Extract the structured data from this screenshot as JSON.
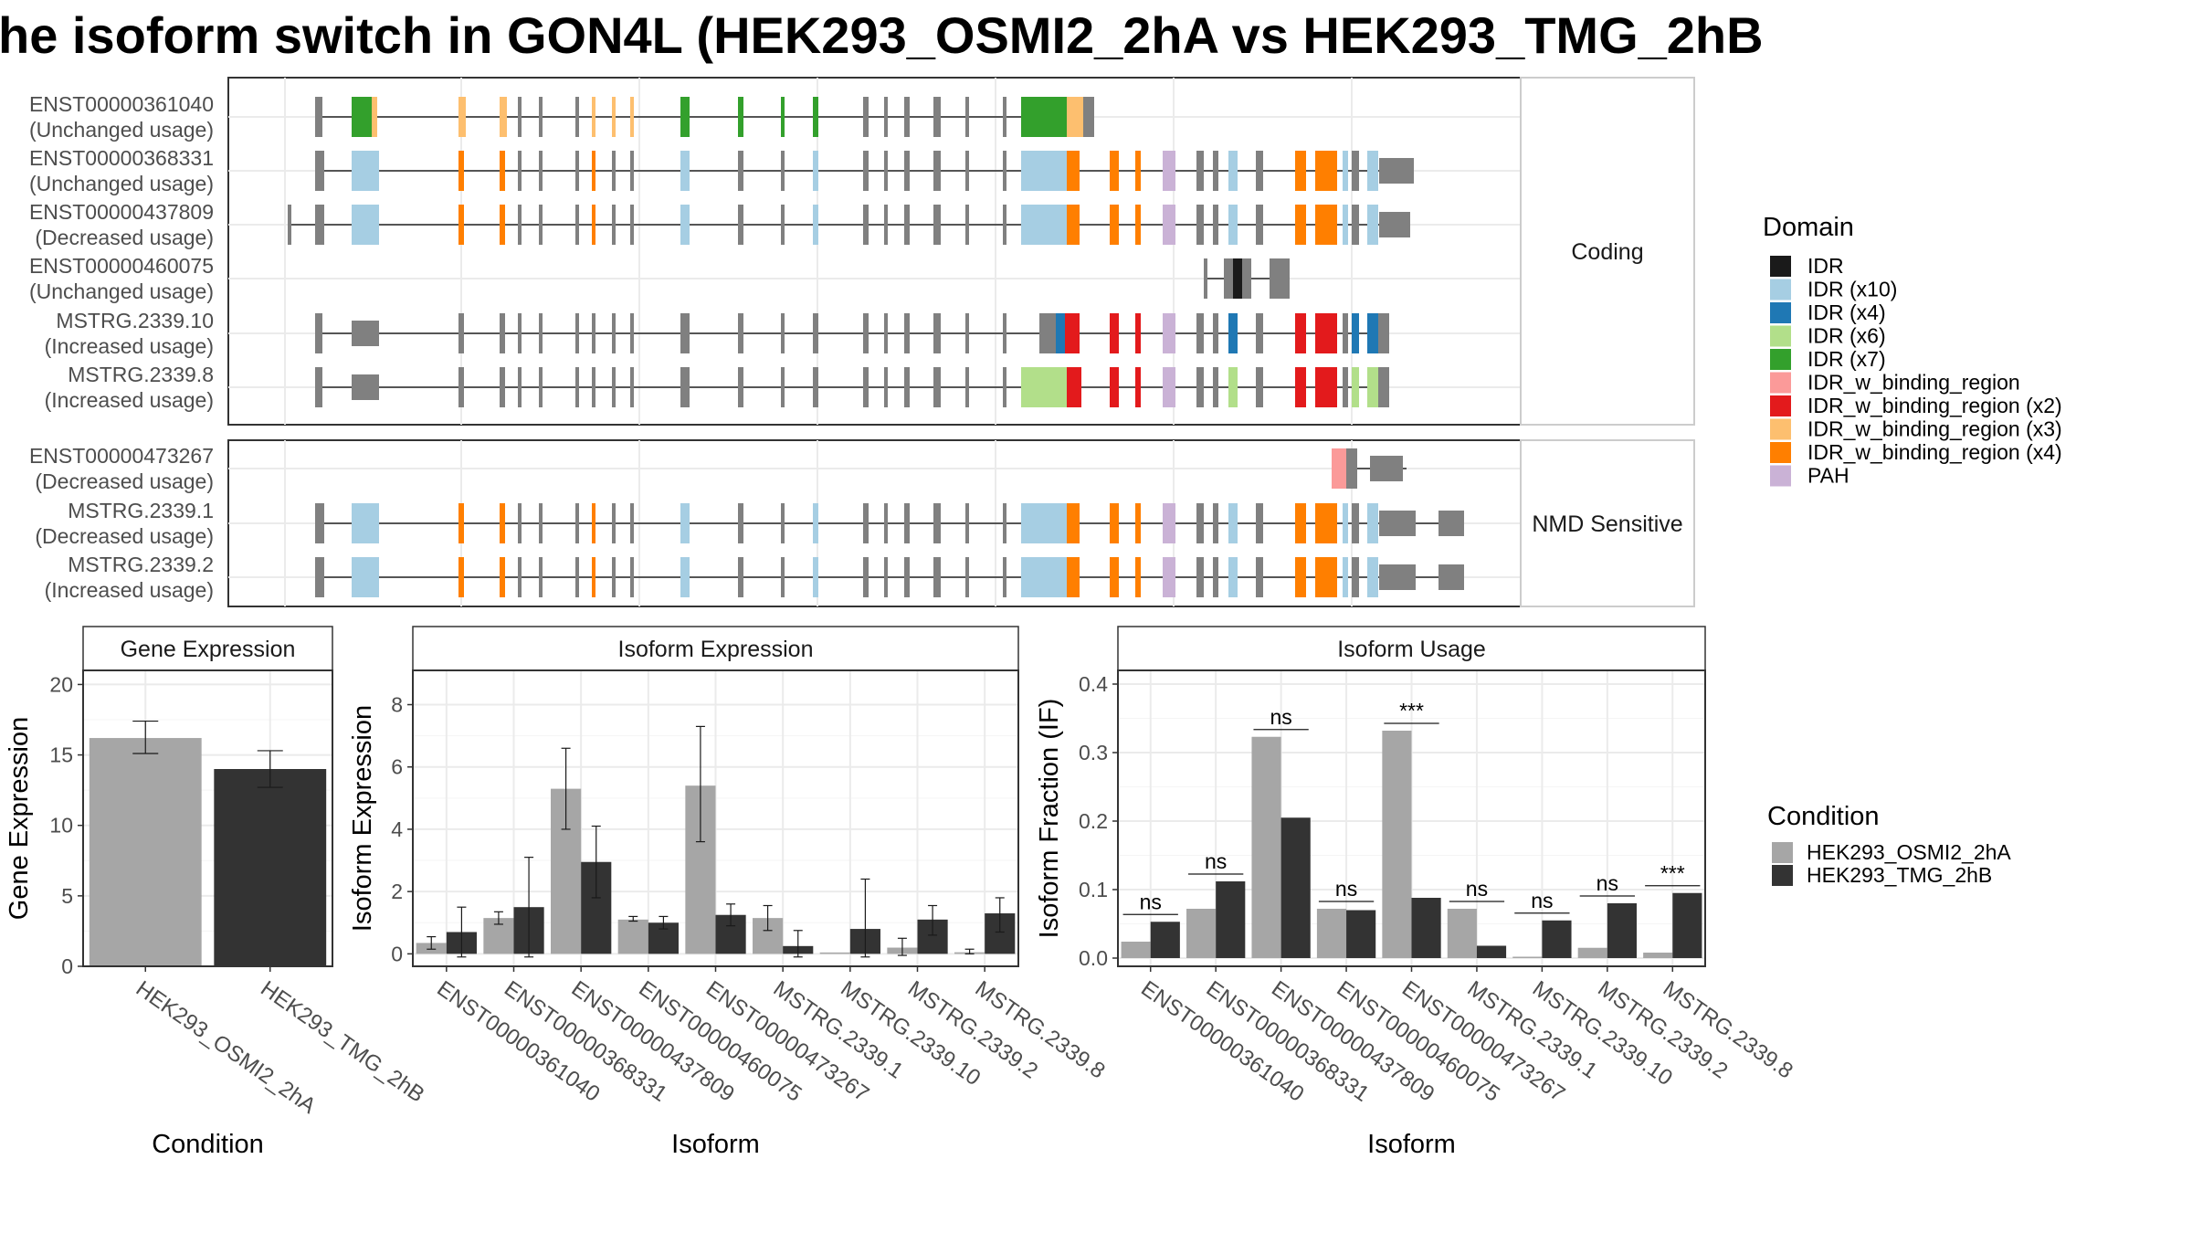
{
  "title": "he isoform switch in GON4L (HEK293_OSMI2_2hA vs HEK293_TMG_2hB",
  "domain_colors": {
    "IDR": "#1a1a1a",
    "IDR (x10)": "#a6cee3",
    "IDR (x4)": "#1f78b4",
    "IDR (x6)": "#b2df8a",
    "IDR (x7)": "#33a02c",
    "IDR_w_binding_region": "#fb9a99",
    "IDR_w_binding_region (x2)": "#e31a1c",
    "IDR_w_binding_region (x3)": "#fdbf6f",
    "IDR_w_binding_region (x4)": "#ff7f00",
    "PAH": "#cab2d6",
    "exon": "#808080"
  },
  "legend_domain": {
    "title": "Domain",
    "items": [
      "IDR",
      "IDR (x10)",
      "IDR (x4)",
      "IDR (x6)",
      "IDR (x7)",
      "IDR_w_binding_region",
      "IDR_w_binding_region (x2)",
      "IDR_w_binding_region (x3)",
      "IDR_w_binding_region (x4)",
      "PAH"
    ]
  },
  "legend_condition": {
    "title": "Condition",
    "items": [
      {
        "label": "HEK293_OSMI2_2hA",
        "color": "#a6a6a6"
      },
      {
        "label": "HEK293_TMG_2hB",
        "color": "#333333"
      }
    ]
  },
  "transcript_panels": [
    {
      "strip": "Coding",
      "transcripts": [
        {
          "name": "ENST00000361040",
          "usage": "(Unchanged usage)"
        },
        {
          "name": "ENST00000368331",
          "usage": "(Unchanged usage)"
        },
        {
          "name": "ENST00000437809",
          "usage": "(Decreased usage)"
        },
        {
          "name": "ENST00000460075",
          "usage": "(Unchanged usage)"
        },
        {
          "name": "MSTRG.2339.10",
          "usage": "(Increased usage)"
        },
        {
          "name": "MSTRG.2339.8",
          "usage": "(Increased usage)"
        }
      ]
    },
    {
      "strip": "NMD Sensitive",
      "transcripts": [
        {
          "name": "ENST00000473267",
          "usage": "(Decreased usage)"
        },
        {
          "name": "MSTRG.2339.1",
          "usage": "(Decreased usage)"
        },
        {
          "name": "MSTRG.2339.2",
          "usage": "(Increased usage)"
        }
      ]
    }
  ],
  "chart_data": [
    {
      "type": "bar",
      "strip": "Gene Expression",
      "xlabel": "Condition",
      "ylabel": "Gene Expression",
      "ylim": [
        0,
        21
      ],
      "yticks": [
        0,
        5,
        10,
        15,
        20
      ],
      "categories": [
        "HEK293_OSMI2_2hA",
        "HEK293_TMG_2hB"
      ],
      "values": [
        16.2,
        14.0
      ],
      "errors": [
        [
          15.1,
          17.4
        ],
        [
          12.7,
          15.3
        ]
      ],
      "colors": [
        "#a6a6a6",
        "#333333"
      ]
    },
    {
      "type": "bar",
      "strip": "Isoform Expression",
      "xlabel": "Isoform",
      "ylabel": "Isoform Expression",
      "ylim": [
        -0.4,
        9.1
      ],
      "yticks": [
        0,
        2,
        4,
        6,
        8
      ],
      "categories": [
        "ENST00000361040",
        "ENST00000368331",
        "ENST00000437809",
        "ENST00000460075",
        "ENST00000473267",
        "MSTRG.2339.1",
        "MSTRG.2339.10",
        "MSTRG.2339.2",
        "MSTRG.2339.8"
      ],
      "series": [
        {
          "name": "HEK293_OSMI2_2hA",
          "values": [
            0.35,
            1.15,
            5.3,
            1.1,
            5.4,
            1.15,
            0,
            0.2,
            0.05
          ],
          "errors": [
            [
              0.15,
              0.55
            ],
            [
              0.95,
              1.35
            ],
            [
              4.0,
              6.6
            ],
            [
              1.05,
              1.2
            ],
            [
              3.6,
              7.3
            ],
            [
              0.75,
              1.55
            ],
            [
              0,
              0
            ],
            [
              -0.05,
              0.5
            ],
            [
              0,
              0.15
            ]
          ]
        },
        {
          "name": "HEK293_TMG_2hB",
          "values": [
            0.7,
            1.5,
            2.95,
            1.0,
            1.25,
            0.25,
            0.8,
            1.1,
            1.3
          ],
          "errors": [
            [
              -0.1,
              1.5
            ],
            [
              -0.1,
              3.1
            ],
            [
              1.8,
              4.1
            ],
            [
              0.8,
              1.2
            ],
            [
              0.9,
              1.6
            ],
            [
              -0.1,
              0.75
            ],
            [
              -0.1,
              2.4
            ],
            [
              0.6,
              1.55
            ],
            [
              0.7,
              1.8
            ]
          ]
        }
      ]
    },
    {
      "type": "bar",
      "strip": "Isoform Usage",
      "xlabel": "Isoform",
      "ylabel": "Isoform Fraction (IF)",
      "ylim": [
        -0.012,
        0.42
      ],
      "yticks": [
        0.0,
        0.1,
        0.2,
        0.3,
        0.4
      ],
      "ytick_labels": [
        "0.0",
        "0.1",
        "0.2",
        "0.3",
        "0.4"
      ],
      "categories": [
        "ENST00000361040",
        "ENST00000368331",
        "ENST00000437809",
        "ENST00000460075",
        "ENST00000473267",
        "MSTRG.2339.1",
        "MSTRG.2339.10",
        "MSTRG.2339.2",
        "MSTRG.2339.8"
      ],
      "series": [
        {
          "name": "HEK293_OSMI2_2hA",
          "values": [
            0.024,
            0.072,
            0.323,
            0.072,
            0.332,
            0.072,
            0.0,
            0.015,
            0.008
          ]
        },
        {
          "name": "HEK293_TMG_2hB",
          "values": [
            0.053,
            0.112,
            0.205,
            0.07,
            0.088,
            0.018,
            0.055,
            0.08,
            0.095
          ]
        }
      ],
      "significance": [
        "ns",
        "ns",
        "ns",
        "ns",
        "***",
        "ns",
        "ns",
        "ns",
        "***"
      ]
    }
  ]
}
